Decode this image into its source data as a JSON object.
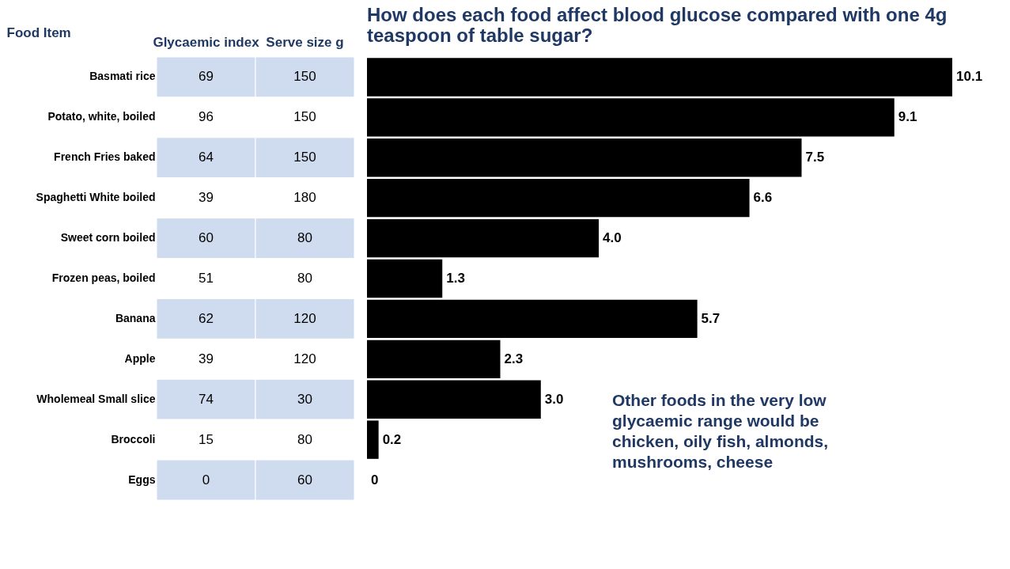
{
  "chart_data": [
    {
      "type": "heatmap",
      "ylabel": "Food Item",
      "categories": [
        "Glycaemic index",
        "Serve size g"
      ],
      "y_categories": [
        "Basmati rice",
        "Potato, white, boiled",
        "French Fries baked",
        "Spaghetti White boiled",
        "Sweet corn boiled",
        "Frozen peas, boiled",
        "Banana",
        "Apple",
        "Wholemeal Small slice",
        "Broccoli",
        "Eggs"
      ],
      "cells": [
        [
          69,
          150
        ],
        [
          96,
          150
        ],
        [
          64,
          150
        ],
        [
          39,
          180
        ],
        [
          60,
          80
        ],
        [
          51,
          80
        ],
        [
          62,
          120
        ],
        [
          39,
          120
        ],
        [
          74,
          30
        ],
        [
          15,
          80
        ],
        [
          0,
          60
        ]
      ],
      "data_labels": true,
      "grid": false
    },
    {
      "type": "bar",
      "orientation": "horizontal",
      "title": "How does each food affect blood glucose compared with one 4g teaspoon of table sugar?",
      "categories": [
        null,
        null,
        null,
        null,
        null,
        null,
        null,
        null,
        null,
        null,
        null
      ],
      "values": [
        10.1,
        9.1,
        7.5,
        6.6,
        4.0,
        1.3,
        5.7,
        2.3,
        3.0,
        0.2,
        0
      ],
      "color": "#000000",
      "value_labels": [
        "10.1",
        "9.1",
        "7.5",
        "6.6",
        "4.0",
        "1.3",
        "5.7",
        "2.3",
        "3.0",
        "0.2",
        "0"
      ],
      "tick_labels": false,
      "grid": false,
      "annotations": [
        "Other foods in the very low glycaemic range would be chicken, oily fish, almonds, mushrooms, cheese"
      ]
    }
  ]
}
